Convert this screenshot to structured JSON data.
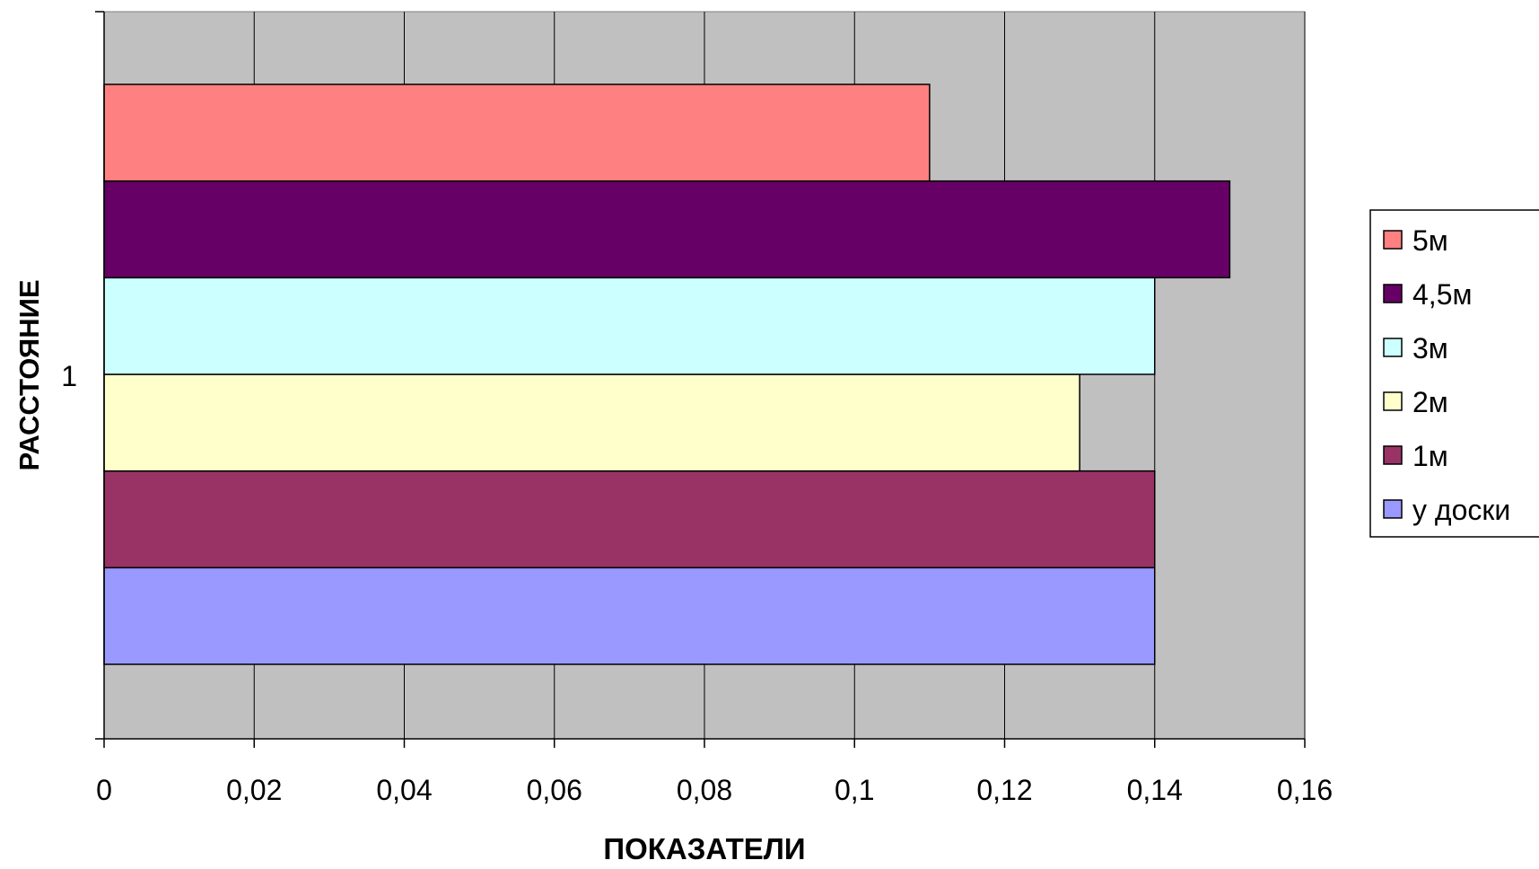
{
  "chart_data": {
    "type": "bar",
    "orientation": "horizontal",
    "title": "",
    "xlabel": "ПОКАЗАТЕЛИ",
    "ylabel": "РАССТОЯНИЕ",
    "categories": [
      "1"
    ],
    "xlim": [
      0,
      0.16
    ],
    "x_ticks": [
      0,
      0.02,
      0.04,
      0.06,
      0.08,
      0.1,
      0.12,
      0.14,
      0.16
    ],
    "x_tick_labels": [
      "0",
      "0,02",
      "0,04",
      "0,06",
      "0,08",
      "0,1",
      "0,12",
      "0,14",
      "0,16"
    ],
    "grid": "vertical",
    "plot_background": "#c0c0c0",
    "legend_position": "right",
    "series": [
      {
        "name": "у доски",
        "values": [
          0.14
        ],
        "color": "#9999ff"
      },
      {
        "name": "1м",
        "values": [
          0.14
        ],
        "color": "#993366"
      },
      {
        "name": "2м",
        "values": [
          0.13
        ],
        "color": "#ffffcc"
      },
      {
        "name": "3м",
        "values": [
          0.14
        ],
        "color": "#ccffff"
      },
      {
        "name": "4,5м",
        "values": [
          0.15
        ],
        "color": "#660066"
      },
      {
        "name": "5м",
        "values": [
          0.11
        ],
        "color": "#ff8080"
      }
    ]
  }
}
